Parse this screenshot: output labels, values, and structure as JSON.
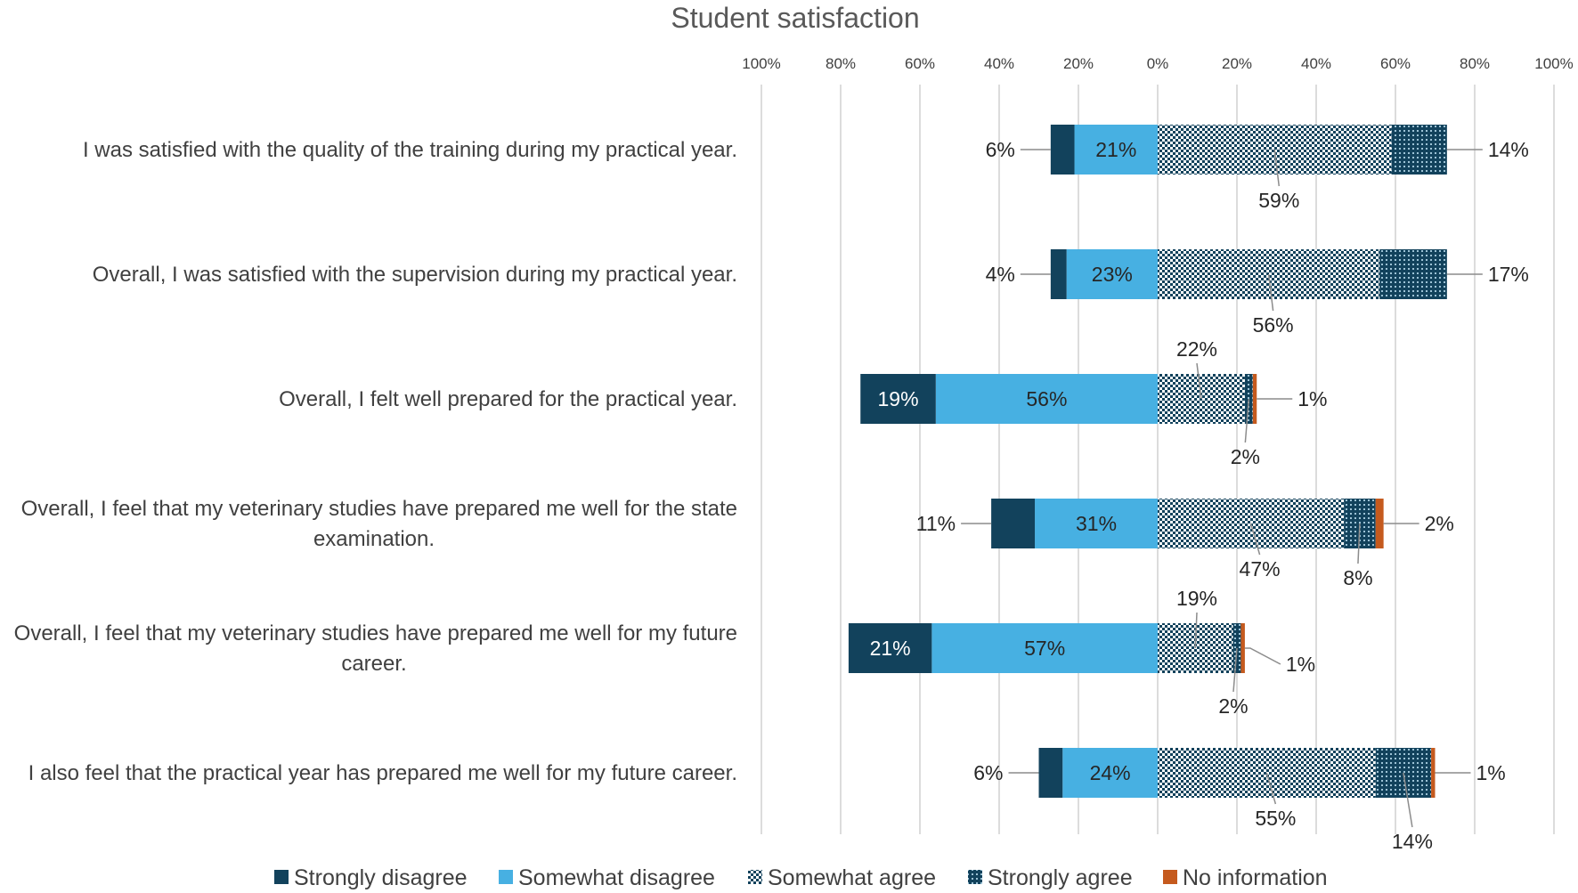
{
  "chart_data": {
    "type": "bar",
    "subtype": "diverging-stacked-horizontal",
    "title": "Student satisfaction",
    "x_ticks": [
      "100%",
      "80%",
      "60%",
      "40%",
      "20%",
      "0%",
      "20%",
      "40%",
      "60%",
      "80%",
      "100%"
    ],
    "xlim": [
      -100,
      100
    ],
    "grid": true,
    "legend_position": "bottom",
    "series": [
      {
        "name": "Strongly disagree",
        "side": "negative",
        "color": "#12425c",
        "pattern": "solid"
      },
      {
        "name": "Somewhat disagree",
        "side": "negative",
        "color": "#47b0e2",
        "pattern": "solid"
      },
      {
        "name": "Somewhat agree",
        "side": "positive",
        "color": "#12425c",
        "pattern": "checker"
      },
      {
        "name": "Strongly agree",
        "side": "positive",
        "color": "#12425c",
        "pattern": "dots"
      },
      {
        "name": "No information",
        "side": "positive",
        "color": "#c55a1e",
        "pattern": "solid"
      }
    ],
    "categories": [
      {
        "label": [
          "I was satisfied with the quality of the training during my practical year."
        ],
        "values": [
          6,
          21,
          59,
          14,
          0
        ],
        "labels": {
          "Strongly disagree": "6%",
          "Somewhat disagree": "21%",
          "Somewhat agree": "59%",
          "Strongly agree": "14%"
        }
      },
      {
        "label": [
          "Overall, I was satisfied with the supervision during my practical year."
        ],
        "values": [
          4,
          23,
          56,
          17,
          0
        ],
        "labels": {
          "Strongly disagree": "4%",
          "Somewhat disagree": "23%",
          "Somewhat agree": "56%",
          "Strongly agree": "17%"
        }
      },
      {
        "label": [
          "Overall, I felt well prepared for the practical year."
        ],
        "values": [
          19,
          56,
          22,
          2,
          1
        ],
        "labels": {
          "Strongly disagree": "19%",
          "Somewhat disagree": "56%",
          "Somewhat agree": "22%",
          "Strongly agree": "2%",
          "No information": "1%"
        }
      },
      {
        "label": [
          "Overall, I feel that my veterinary studies have prepared me well for the state",
          "examination."
        ],
        "values": [
          11,
          31,
          47,
          8,
          2
        ],
        "labels": {
          "Strongly disagree": "11%",
          "Somewhat disagree": "31%",
          "Somewhat agree": "47%",
          "Strongly agree": "8%",
          "No information": "2%"
        }
      },
      {
        "label": [
          "Overall, I feel that my veterinary studies have prepared me well for my future",
          "career."
        ],
        "values": [
          21,
          57,
          19,
          2,
          1
        ],
        "labels": {
          "Strongly disagree": "21%",
          "Somewhat disagree": "57%",
          "Somewhat agree": "19%",
          "Strongly agree": "2%",
          "No information": "1%"
        }
      },
      {
        "label": [
          "I also feel that the practical year has prepared me well for my future career."
        ],
        "values": [
          6,
          24,
          55,
          14,
          1
        ],
        "labels": {
          "Strongly disagree": "6%",
          "Somewhat disagree": "24%",
          "Somewhat agree": "55%",
          "Strongly agree": "14%",
          "No information": "1%"
        }
      }
    ]
  }
}
